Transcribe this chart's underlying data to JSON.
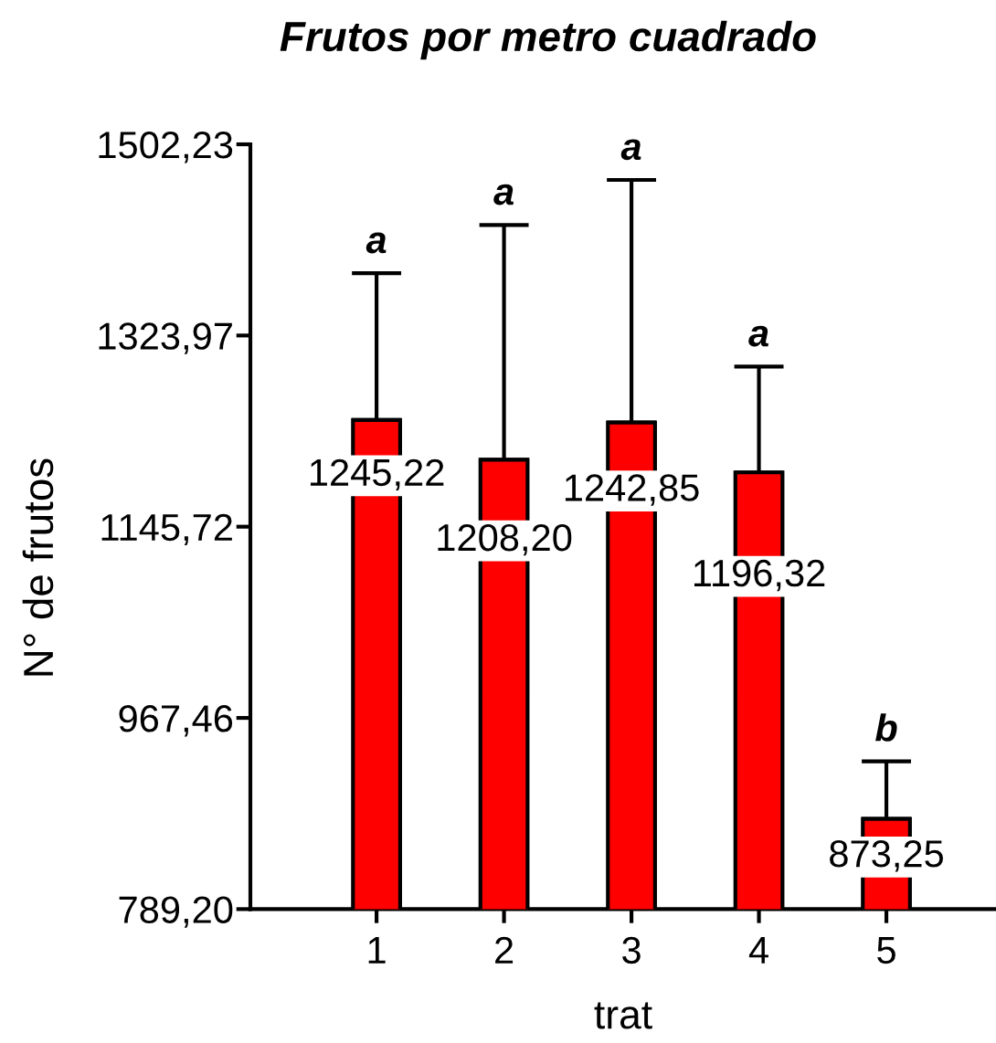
{
  "chart_data": {
    "type": "bar",
    "title": "Frutos por metro cuadrado",
    "xlabel": "trat",
    "ylabel": "N° de frutos",
    "categories": [
      "1",
      "2",
      "3",
      "4",
      "5"
    ],
    "values": [
      1245.22,
      1208.2,
      1242.85,
      1196.32,
      873.25
    ],
    "color": "#ff0000",
    "errors": [
      [
        1245.22,
        1382
      ],
      [
        1208.2,
        1427
      ],
      [
        1242.85,
        1469
      ],
      [
        1196.32,
        1295
      ],
      [
        873.25,
        927
      ]
    ],
    "value_labels": [
      "1245,22",
      "1208,20",
      "1242,85",
      "1196,32",
      "873,25"
    ],
    "ylim": [
      789.2,
      1502.23
    ],
    "yticks": [
      {
        "value": 789.2,
        "label": "789,20"
      },
      {
        "value": 967.46,
        "label": "967,46"
      },
      {
        "value": 1145.72,
        "label": "1145,72"
      },
      {
        "value": 1323.97,
        "label": "1323,97"
      },
      {
        "value": 1502.23,
        "label": "1502,23"
      }
    ],
    "annotations": [
      {
        "text": "a",
        "x": "1",
        "y": 1382
      },
      {
        "text": "a",
        "x": "2",
        "y": 1427
      },
      {
        "text": "a",
        "x": "3",
        "y": 1469
      },
      {
        "text": "a",
        "x": "4",
        "y": 1295
      },
      {
        "text": "b",
        "x": "5",
        "y": 927
      }
    ]
  }
}
